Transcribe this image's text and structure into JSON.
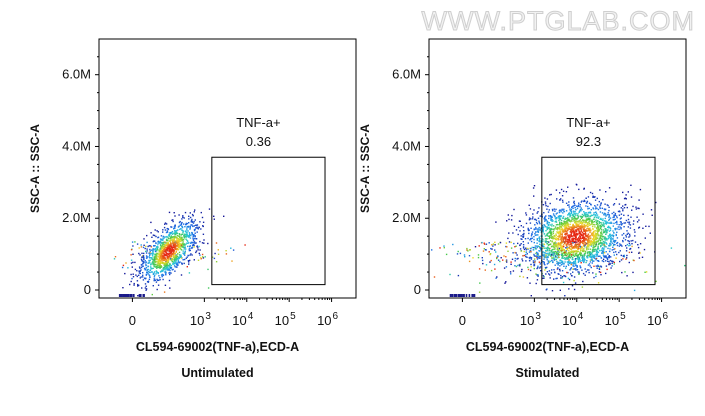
{
  "watermark": "WWW.PTGLAB.COM",
  "chart_data": [
    {
      "type": "scatter",
      "caption": "Untimulated",
      "xlabel": "CL594-69002(TNF-a),ECD-A",
      "ylabel": "SSC-A :: SSC-A",
      "x_scale": "biexponential",
      "x_ticks": [
        {
          "base": "0",
          "exp": ""
        },
        {
          "base": "10",
          "exp": "3"
        },
        {
          "base": "10",
          "exp": "4"
        },
        {
          "base": "10",
          "exp": "5"
        },
        {
          "base": "10",
          "exp": "6"
        }
      ],
      "y_ticks": [
        "0",
        "2.0M",
        "4.0M",
        "6.0M"
      ],
      "ylim": [
        0,
        7000000
      ],
      "gate": {
        "name": "TNF-a+",
        "value": "0.36",
        "x_range": [
          1500,
          700000
        ],
        "y_range": [
          150000,
          3700000
        ]
      },
      "population": {
        "center": [
          500,
          1100000
        ],
        "spread": "low, compact diagonal cloud",
        "events": 1300
      }
    },
    {
      "type": "scatter",
      "caption": "Stimulated",
      "xlabel": "CL594-69002(TNF-a),ECD-A",
      "ylabel": "SSC-A :: SSC-A",
      "x_scale": "biexponential",
      "x_ticks": [
        {
          "base": "0",
          "exp": ""
        },
        {
          "base": "10",
          "exp": "3"
        },
        {
          "base": "10",
          "exp": "4"
        },
        {
          "base": "10",
          "exp": "5"
        },
        {
          "base": "10",
          "exp": "6"
        }
      ],
      "y_ticks": [
        "0",
        "2.0M",
        "4.0M",
        "6.0M"
      ],
      "ylim": [
        0,
        7000000
      ],
      "gate": {
        "name": "TNF-a+",
        "value": "92.3",
        "x_range": [
          1500,
          700000
        ],
        "y_range": [
          150000,
          3700000
        ]
      },
      "population": {
        "center": [
          9000,
          1500000
        ],
        "spread": "broad cloud centered in gate",
        "events": 2600
      }
    }
  ]
}
